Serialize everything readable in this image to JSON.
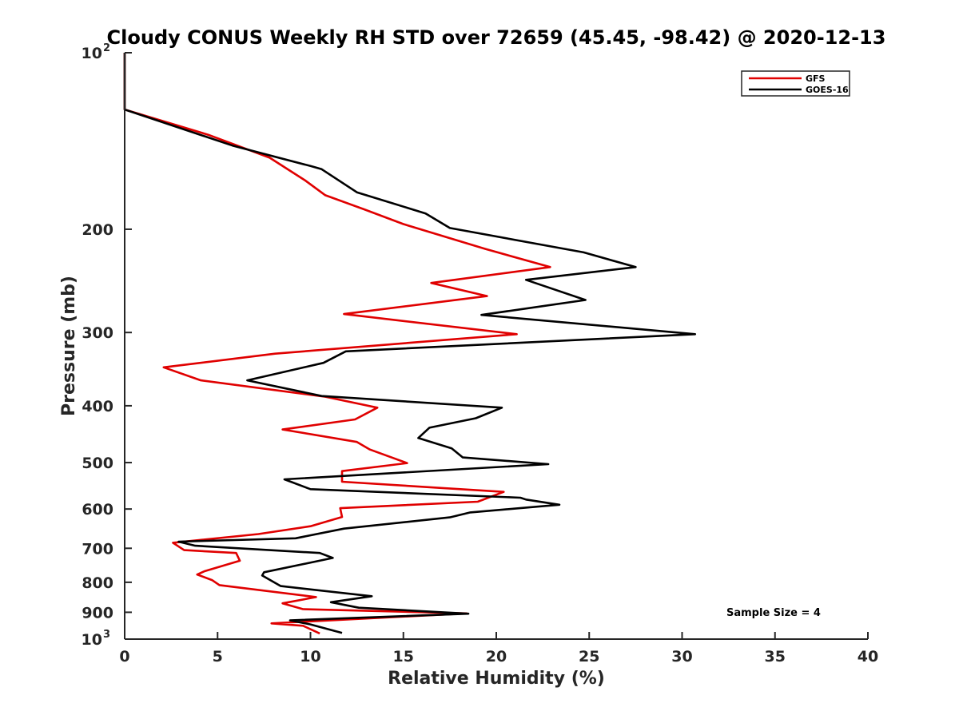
{
  "chart_data": {
    "type": "line",
    "title": "Cloudy CONUS Weekly RH STD over 72659 (45.45, -98.42) @ 2020-12-13",
    "xlabel": "Relative Humidity (%)",
    "ylabel": "Pressure (mb)",
    "xlim": [
      0,
      40
    ],
    "ylim": [
      100,
      1000
    ],
    "y_scale": "log",
    "y_reversed": true,
    "grid": false,
    "legend_position": "top-right",
    "x_ticks": [
      "0",
      "5",
      "10",
      "15",
      "20",
      "25",
      "30",
      "35",
      "40"
    ],
    "y_ticks": [
      {
        "value": 100,
        "base": "10",
        "exp": "2"
      },
      {
        "value": 200,
        "label": "200"
      },
      {
        "value": 300,
        "label": "300"
      },
      {
        "value": 400,
        "label": "400"
      },
      {
        "value": 500,
        "label": "500"
      },
      {
        "value": 600,
        "label": "600"
      },
      {
        "value": 700,
        "label": "700"
      },
      {
        "value": 800,
        "label": "800"
      },
      {
        "value": 900,
        "label": "900"
      },
      {
        "value": 1000,
        "base": "10",
        "exp": "3"
      }
    ],
    "series": [
      {
        "name": "GFS",
        "color": "#e00000",
        "points": [
          [
            0,
            100
          ],
          [
            0,
            125
          ],
          [
            4.5,
            138
          ],
          [
            7.8,
            151
          ],
          [
            9.7,
            165
          ],
          [
            10.8,
            175
          ],
          [
            12.9,
            185
          ],
          [
            15,
            196
          ],
          [
            19.4,
            216
          ],
          [
            22.9,
            232
          ],
          [
            16.5,
            247
          ],
          [
            19.5,
            260
          ],
          [
            11.8,
            279
          ],
          [
            21.1,
            302
          ],
          [
            8.1,
            326
          ],
          [
            2.1,
            344
          ],
          [
            4.1,
            362
          ],
          [
            10.8,
            386
          ],
          [
            13.6,
            403
          ],
          [
            12.4,
            422
          ],
          [
            8.5,
            439
          ],
          [
            12.5,
            461
          ],
          [
            13.2,
            475
          ],
          [
            15.2,
            501
          ],
          [
            11.7,
            517
          ],
          [
            11.7,
            539
          ],
          [
            20.4,
            561
          ],
          [
            19,
            583
          ],
          [
            11.6,
            598
          ],
          [
            11.7,
            619
          ],
          [
            10,
            642
          ],
          [
            7.2,
            662
          ],
          [
            2.6,
            685
          ],
          [
            3.2,
            705
          ],
          [
            6,
            713
          ],
          [
            6.2,
            735
          ],
          [
            4.3,
            766
          ],
          [
            3.9,
            776
          ],
          [
            4.7,
            793
          ],
          [
            5.1,
            809
          ],
          [
            10.3,
            848
          ],
          [
            8.5,
            869
          ],
          [
            9.6,
            889
          ],
          [
            18.4,
            904
          ],
          [
            7.9,
            940
          ],
          [
            9.6,
            949
          ],
          [
            10.5,
            978
          ]
        ]
      },
      {
        "name": "GOES-16",
        "color": "#000000",
        "points": [
          [
            0,
            100
          ],
          [
            0,
            125
          ],
          [
            5.8,
            144
          ],
          [
            10,
            156
          ],
          [
            10.6,
            158
          ],
          [
            12.5,
            173
          ],
          [
            16.2,
            188
          ],
          [
            17.5,
            199
          ],
          [
            24.7,
            219
          ],
          [
            27.5,
            232
          ],
          [
            21.6,
            244
          ],
          [
            24.8,
            264
          ],
          [
            19.2,
            280
          ],
          [
            30.7,
            302
          ],
          [
            11.9,
            323
          ],
          [
            10.7,
            338
          ],
          [
            6.6,
            362
          ],
          [
            10.6,
            385
          ],
          [
            20.3,
            403
          ],
          [
            18.9,
            420
          ],
          [
            16.4,
            436
          ],
          [
            15.8,
            454
          ],
          [
            17.6,
            473
          ],
          [
            18.2,
            490
          ],
          [
            22.8,
            503
          ],
          [
            8.6,
            534
          ],
          [
            10,
            555
          ],
          [
            21.3,
            574
          ],
          [
            21.6,
            578
          ],
          [
            23.4,
            590
          ],
          [
            18.6,
            608
          ],
          [
            17.5,
            620
          ],
          [
            11.8,
            648
          ],
          [
            9.2,
            673
          ],
          [
            2.9,
            682
          ],
          [
            3.8,
            693
          ],
          [
            10.5,
            713
          ],
          [
            11.2,
            727
          ],
          [
            7.5,
            769
          ],
          [
            7.4,
            779
          ],
          [
            8.4,
            812
          ],
          [
            13.3,
            845
          ],
          [
            11.1,
            865
          ],
          [
            12.6,
            884
          ],
          [
            18.5,
            905
          ],
          [
            8.9,
            929
          ],
          [
            10,
            944
          ],
          [
            11.7,
            976
          ]
        ]
      }
    ],
    "legend": [
      {
        "label": "GFS",
        "color": "#e00000"
      },
      {
        "label": "GOES-16",
        "color": "#000000"
      }
    ],
    "annotation": "Sample Size = 4"
  }
}
